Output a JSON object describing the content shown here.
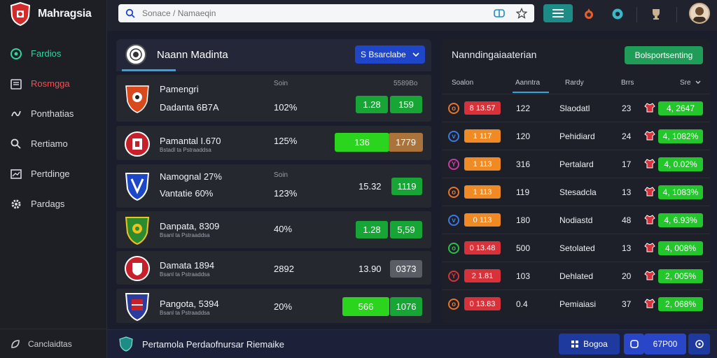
{
  "app": {
    "name": "Mahragsia"
  },
  "sidebar": {
    "items": [
      {
        "label": "Fardios",
        "icon": "soccer-ball-icon",
        "state": "active"
      },
      {
        "label": "Rosmgga",
        "icon": "calendar-icon",
        "state": "alert"
      },
      {
        "label": "Ponthatias",
        "icon": "stats-icon",
        "state": ""
      },
      {
        "label": "Rertiamo",
        "icon": "search-user-icon",
        "state": ""
      },
      {
        "label": "Pertdinge",
        "icon": "chart-icon",
        "state": ""
      },
      {
        "label": "Pardags",
        "icon": "gear-icon",
        "state": ""
      }
    ],
    "bottom_label": "Canclaidtas"
  },
  "topbar": {
    "search_placeholder": "Sonace / Namaeqin"
  },
  "left_panel": {
    "title": "Naann Madinta",
    "select_label": "S Bsarclabe",
    "col_label_a": "Soin",
    "col_label_b": "5589Bo",
    "col_label_c": "Soin",
    "rows": [
      {
        "name1": "Pamengri",
        "name2": "Dadanta 6B7A",
        "sub": "",
        "pct": "102%",
        "num": "",
        "pill1": "1.28",
        "pill2": "159"
      },
      {
        "name1": "Pamantal I.670",
        "name2": "",
        "sub": "Bstadl ta Pstraaddsa",
        "pct": "125%",
        "num": "",
        "pill1": "136",
        "pill2": "1779"
      },
      {
        "name1": "Namognal 27%",
        "name2": "Vantatie 60%",
        "sub": "",
        "pct": "123%",
        "num": "15.32",
        "pill1": "",
        "pill2": "1119"
      },
      {
        "name1": "Danpata, 8309",
        "name2": "",
        "sub": "Bsanl ta Pstraaddsa",
        "pct": "40%",
        "num": "",
        "pill1": "1.28",
        "pill2": "5,59"
      },
      {
        "name1": "Damata 1894",
        "name2": "",
        "sub": "Bsanl ta Pstraaddsa",
        "pct": "2892",
        "num": "13.90",
        "pill1": "",
        "pill2": "0373"
      },
      {
        "name1": "Pangota, 5394",
        "name2": "",
        "sub": "Bsanl ta Pstraaddsa",
        "pct": "20%",
        "num": "",
        "pill1": "566",
        "pill2": "1076"
      }
    ]
  },
  "right_panel": {
    "title": "Nanndingaiaaterian",
    "button_label": "Bolsportsenting",
    "headers": [
      "Soalon",
      "Aanntra",
      "Rardy",
      "Brrs",
      "Sre"
    ],
    "rows": [
      {
        "icon_char": "o",
        "icon_color": "#e8742c",
        "badge": "8 13.57",
        "badge_color": "red",
        "c1": "122",
        "c2": "Slaodatl",
        "c3": "23",
        "value": "4, 2647"
      },
      {
        "icon_char": "v",
        "icon_color": "#3a7ae0",
        "badge": "1 117",
        "badge_color": "orange",
        "c1": "120",
        "c2": "Pehidiard",
        "c3": "24",
        "value": "4, 1082%"
      },
      {
        "icon_char": "Y",
        "icon_color": "#c93c9e",
        "badge": "1 113",
        "badge_color": "orange",
        "c1": "316",
        "c2": "Pertalard",
        "c3": "17",
        "value": "4, 0.02%"
      },
      {
        "icon_char": "o",
        "icon_color": "#e8742c",
        "badge": "1 113",
        "badge_color": "orange",
        "c1": "119",
        "c2": "Stesadcla",
        "c3": "13",
        "value": "4, 1083%"
      },
      {
        "icon_char": "v",
        "icon_color": "#3a7ae0",
        "badge": "0 113",
        "badge_color": "orange",
        "c1": "180",
        "c2": "Nodiastd",
        "c3": "48",
        "value": "4, 6.93%"
      },
      {
        "icon_char": "o",
        "icon_color": "#2bbf4a",
        "badge": "0 13.48",
        "badge_color": "red",
        "c1": "500",
        "c2": "Setolated",
        "c3": "13",
        "value": "4, 008%"
      },
      {
        "icon_char": "Y",
        "icon_color": "#d7323a",
        "badge": "2 1.81",
        "badge_color": "red",
        "c1": "103",
        "c2": "Dehlated",
        "c3": "20",
        "value": "2, 005%"
      },
      {
        "icon_char": "o",
        "icon_color": "#e8742c",
        "badge": "0 13.83",
        "badge_color": "red",
        "c1": "0.4",
        "c2": "Pemiaiasi",
        "c3": "37",
        "value": "2, 068%"
      }
    ]
  },
  "bottom_bar": {
    "text": "Pertamola Perdaofnursar Riemaike",
    "btn1": "Bogoa",
    "btn2": "67P00"
  }
}
